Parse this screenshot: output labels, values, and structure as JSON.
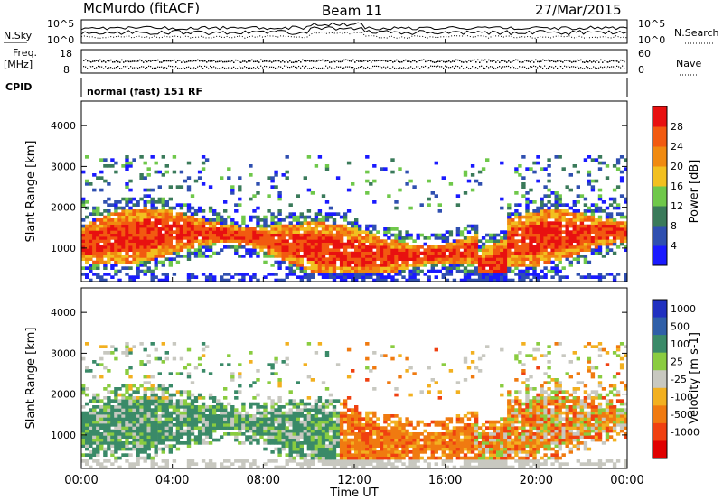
{
  "header": {
    "radar": "McMurdo (fitACF)",
    "beam": "Beam 11",
    "date": "27/Mar/2015"
  },
  "housekeeping": {
    "nsky_label": "N.Sky",
    "nsearch_label": "N.Search",
    "noise_ticks": [
      "10^5",
      "10^0"
    ],
    "freq_label": "Freq.",
    "freq_unit": "[MHz]",
    "freq_ticks": [
      "18",
      "8"
    ],
    "nave_label": "Nave",
    "nave_ticks": [
      "60",
      "0"
    ],
    "cpid_label": "CPID",
    "cpid_value": "normal (fast) 151 RF"
  },
  "chart_data": [
    {
      "type": "heatmap",
      "name": "power",
      "ylabel": "Slant Range [km]",
      "xlabel": "Time UT",
      "ylim": [
        180,
        4600
      ],
      "yticks": [
        "1000",
        "2000",
        "3000",
        "4000"
      ],
      "xticks": [
        "00:00",
        "04:00",
        "08:00",
        "12:00",
        "16:00",
        "20:00",
        "00:00"
      ],
      "colorbar_label": "Power [dB]",
      "colorbar_ticks": [
        "4",
        "8",
        "12",
        "16",
        "20",
        "24",
        "28"
      ],
      "colors": [
        "#1a1aff",
        "#2f4fb0",
        "#3a7a5a",
        "#6fc84a",
        "#f2c020",
        "#f08a10",
        "#f25a10",
        "#e81010"
      ]
    },
    {
      "type": "heatmap",
      "name": "velocity",
      "ylabel": "Slant Range [km]",
      "xlabel": "Time UT",
      "ylim": [
        180,
        4600
      ],
      "yticks": [
        "1000",
        "2000",
        "3000",
        "4000"
      ],
      "xticks": [
        "00:00",
        "04:00",
        "08:00",
        "12:00",
        "16:00",
        "20:00",
        "00:00"
      ],
      "colorbar_label": "Velocity [m s-1]",
      "colorbar_ticks": [
        "1000",
        "500",
        "100",
        "25",
        "-25",
        "-100",
        "-500",
        "-1000"
      ],
      "colors": [
        "#2030c0",
        "#2f5fa8",
        "#3a8a68",
        "#8acc40",
        "#c8c8c0",
        "#f2b020",
        "#f07a10",
        "#f04010",
        "#e00000"
      ]
    }
  ],
  "xaxis": {
    "ticks": [
      "00:00",
      "04:00",
      "08:00",
      "12:00",
      "16:00",
      "20:00",
      "00:00"
    ],
    "label": "Time UT"
  }
}
